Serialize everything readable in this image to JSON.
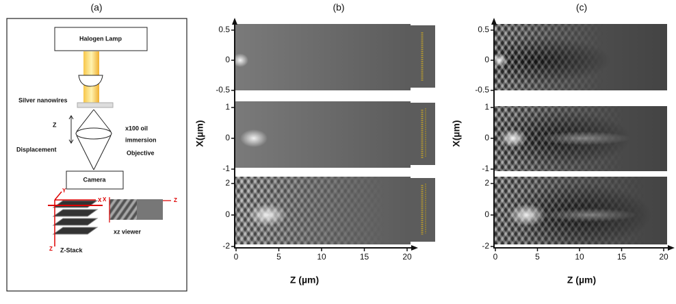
{
  "panels": [
    {
      "label": "(a)",
      "diagram": {
        "lamp": "Halogen Lamp",
        "sample": "Silver nanowires",
        "z_axis": "Z",
        "displacement": "Displacement",
        "objective": [
          "x100 oil",
          "immersion",
          "Objective"
        ],
        "camera": "Camera",
        "stack_axes": [
          "Y",
          "X",
          "Z"
        ],
        "stack_label": "Z-Stack",
        "viewer_label": "xz viewer",
        "viewer_axes": [
          "X",
          "Z"
        ]
      }
    },
    {
      "label": "(b)",
      "x_label": "Z (µm)",
      "y_label": "X(µm)",
      "xticks": [
        0,
        5,
        10,
        15,
        20
      ],
      "rows": [
        {
          "yticks": [
            0.5,
            0,
            -0.5
          ]
        },
        {
          "yticks": [
            1,
            0,
            -1
          ]
        },
        {
          "yticks": [
            2,
            0,
            -2
          ]
        }
      ]
    },
    {
      "label": "(c)",
      "x_label": "Z (µm)",
      "y_label": "X(µm)",
      "xticks": [
        0,
        5,
        10,
        15,
        20
      ],
      "rows": [
        {
          "yticks": [
            0.5,
            0,
            -0.5
          ]
        },
        {
          "yticks": [
            1,
            0,
            -1
          ]
        },
        {
          "yticks": [
            2,
            0,
            -2
          ]
        }
      ]
    }
  ]
}
